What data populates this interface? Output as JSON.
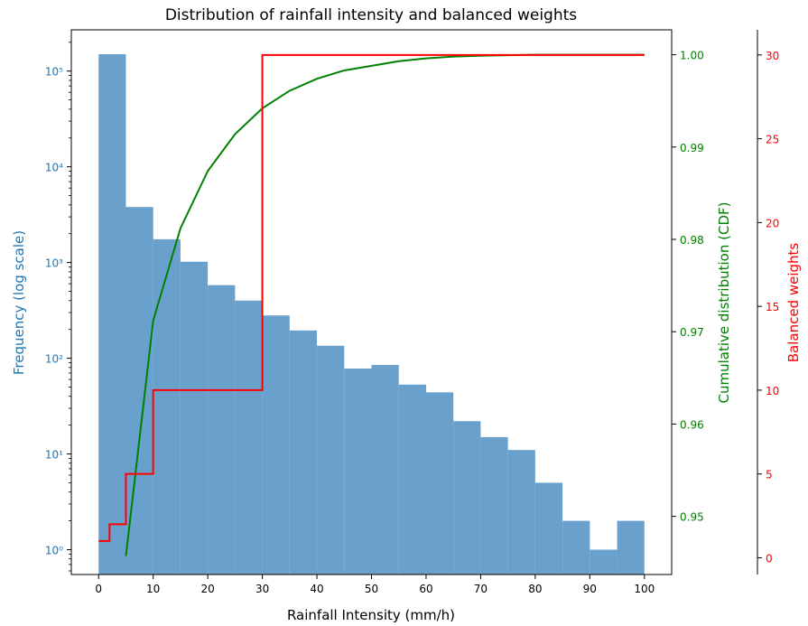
{
  "chart_data": {
    "type": "bar",
    "title": "Distribution of rainfall intensity and balanced weights",
    "xlabel": "Rainfall Intensity (mm/h)",
    "xlim": [
      -5,
      105
    ],
    "xticks": [
      0,
      10,
      20,
      30,
      40,
      50,
      60,
      70,
      80,
      90,
      100
    ],
    "histogram": {
      "axis": "left",
      "ylabel": "Frequency (log scale)",
      "yscale": "log",
      "ylim": [
        0.55,
        270000
      ],
      "yticks": [
        1,
        10,
        100,
        1000,
        10000,
        100000
      ],
      "yticklabels": [
        "10⁰",
        "10¹",
        "10²",
        "10³",
        "10⁴",
        "10⁵"
      ],
      "bin_edges": [
        0,
        5,
        10,
        15,
        20,
        25,
        30,
        35,
        40,
        45,
        50,
        55,
        60,
        65,
        70,
        75,
        80,
        85,
        90,
        95,
        100
      ],
      "values": [
        150000,
        3800,
        1750,
        1020,
        580,
        400,
        280,
        195,
        135,
        78,
        85,
        53,
        44,
        22,
        15,
        11,
        5,
        2,
        1,
        2
      ],
      "color": "#6aa1cc"
    },
    "series": [
      {
        "axis": "right1",
        "ylabel": "Cumulative distribution (CDF)",
        "ylim": [
          0.9437,
          1.0027
        ],
        "yticks": [
          0.95,
          0.96,
          0.97,
          0.98,
          0.99,
          1.0
        ],
        "yticklabels": [
          "0.95",
          "0.96",
          "0.97",
          "0.98",
          "0.99",
          "1.00"
        ],
        "x": [
          5,
          10,
          15,
          20,
          25,
          30,
          35,
          40,
          45,
          50,
          55,
          60,
          65,
          70,
          75,
          80,
          85,
          90,
          95,
          100
        ],
        "values": [
          0.9457,
          0.9712,
          0.9812,
          0.9874,
          0.9914,
          0.9942,
          0.9961,
          0.9974,
          0.9983,
          0.9988,
          0.9993,
          0.9996,
          0.9998,
          0.9999,
          0.99995,
          1.0,
          1.0,
          1.0,
          1.0,
          1.0
        ],
        "color": "#008000"
      },
      {
        "axis": "right2",
        "ylabel": "Balanced weights",
        "ylim": [
          -1.0,
          31.5
        ],
        "yticks": [
          0,
          5,
          10,
          15,
          20,
          25,
          30
        ],
        "yticklabels": [
          "0",
          "5",
          "10",
          "15",
          "20",
          "25",
          "30"
        ],
        "step": "post",
        "x": [
          0,
          2,
          5,
          10,
          30,
          100
        ],
        "values": [
          1,
          2,
          5,
          10,
          30,
          30
        ],
        "color": "#ff0000"
      }
    ]
  }
}
